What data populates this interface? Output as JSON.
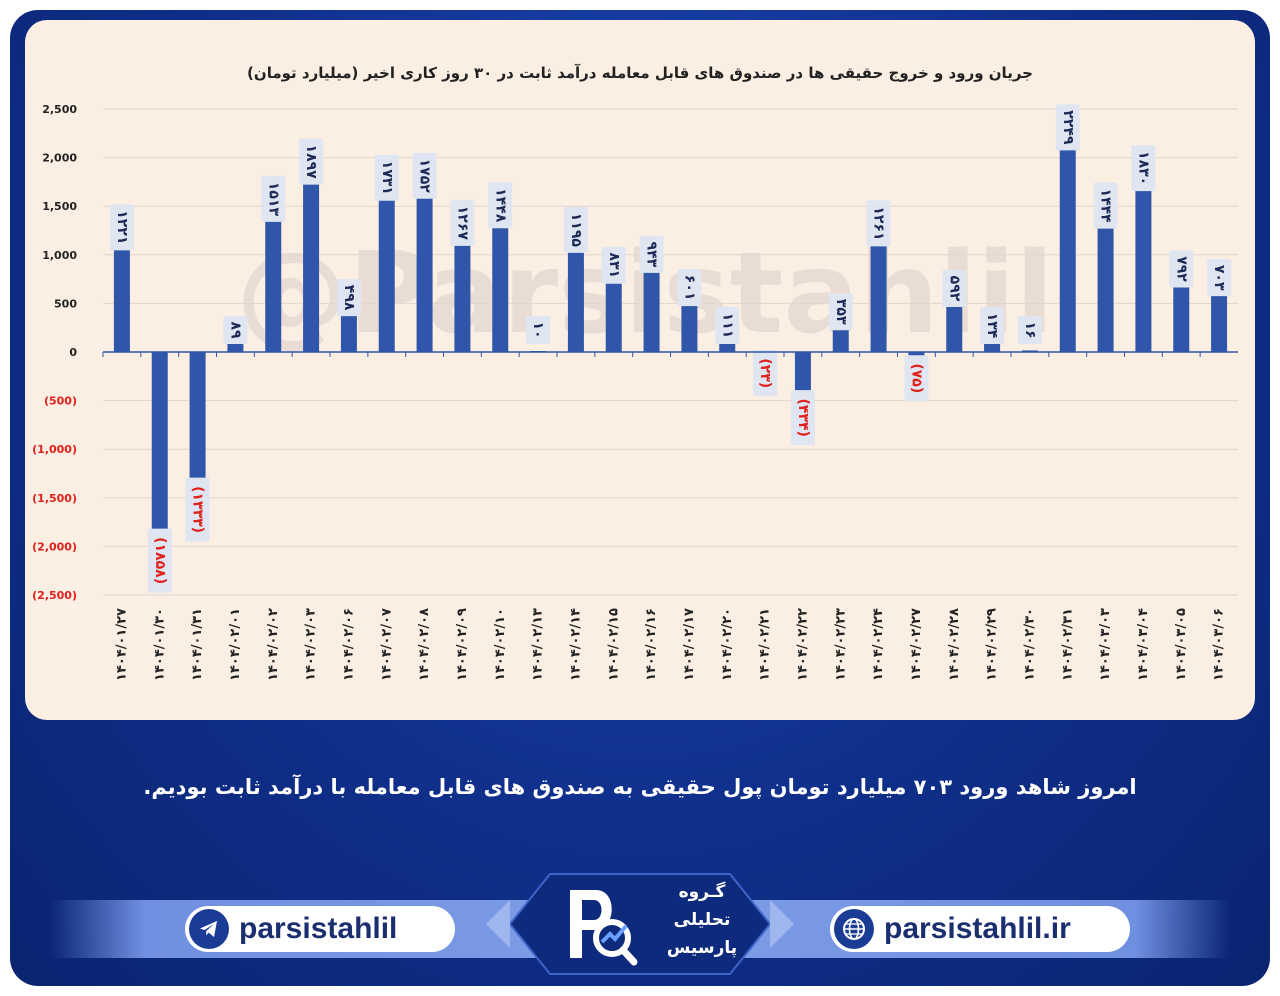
{
  "chart_data": {
    "type": "bar",
    "title": "جریان ورود و خروج حقیقی ها در صندوق های قابل معامله درآمد ثابت در ۳۰ روز کاری اخیر (میلیارد تومان)",
    "watermark": "@Parsistahlil",
    "ylim": [
      -2500,
      2500
    ],
    "yticks": [
      {
        "v": 2500,
        "label": "2,500"
      },
      {
        "v": 2000,
        "label": "2,000"
      },
      {
        "v": 1500,
        "label": "1,500"
      },
      {
        "v": 1000,
        "label": "1,000"
      },
      {
        "v": 500,
        "label": "500"
      },
      {
        "v": 0,
        "label": "0"
      },
      {
        "v": -500,
        "label": "(500)"
      },
      {
        "v": -1000,
        "label": "(1,000)"
      },
      {
        "v": -1500,
        "label": "(1,500)"
      },
      {
        "v": -2000,
        "label": "(2,000)"
      },
      {
        "v": -2500,
        "label": "(2,500)"
      }
    ],
    "grid": true,
    "colors": {
      "bar": "#2f56a8",
      "negative_label": "#e0201b",
      "label_box": "#dfe6f2",
      "tick_negative": "#e0201b"
    },
    "categories": [
      "۱۴۰۴/۰۱/۲۷",
      "۱۴۰۴/۰۱/۳۰",
      "۱۴۰۴/۰۱/۳۱",
      "۱۴۰۴/۰۲/۰۱",
      "۱۴۰۴/۰۲/۰۲",
      "۱۴۰۴/۰۲/۰۳",
      "۱۴۰۴/۰۲/۰۶",
      "۱۴۰۴/۰۲/۰۷",
      "۱۴۰۴/۰۲/۰۸",
      "۱۴۰۴/۰۲/۰۹",
      "۱۴۰۴/۰۲/۱۰",
      "۱۴۰۴/۰۲/۱۳",
      "۱۴۰۴/۰۲/۱۴",
      "۱۴۰۴/۰۲/۱۵",
      "۱۴۰۴/۰۲/۱۶",
      "۱۴۰۴/۰۲/۱۷",
      "۱۴۰۴/۰۲/۲۰",
      "۱۴۰۴/۰۲/۲۱",
      "۱۴۰۴/۰۲/۲۲",
      "۱۴۰۴/۰۲/۲۳",
      "۱۴۰۴/۰۲/۲۴",
      "۱۴۰۴/۰۲/۲۷",
      "۱۴۰۴/۰۲/۲۸",
      "۱۴۰۴/۰۲/۲۹",
      "۱۴۰۴/۰۲/۳۰",
      "۱۴۰۴/۰۲/۳۱",
      "۱۴۰۴/۰۳/۰۳",
      "۱۴۰۴/۰۳/۰۴",
      "۱۴۰۴/۰۳/۰۵",
      "۱۴۰۴/۰۳/۰۶"
    ],
    "values": [
      1221,
      -1858,
      -1333,
      89,
      1513,
      1897,
      498,
      1731,
      1752,
      1267,
      1448,
      10,
      1195,
      831,
      943,
      601,
      111,
      -23,
      -434,
      353,
      1261,
      -75,
      592,
      134,
      16,
      2249,
      1444,
      1830,
      792,
      703
    ],
    "data_labels": [
      "۱۲۲۱",
      "(۱۸۵۸)",
      "(۱۳۳۳)",
      "۸۹",
      "۱۵۱۳",
      "۱۸۹۷",
      "۴۹۸",
      "۱۷۳۱",
      "۱۷۵۲",
      "۱۲۶۷",
      "۱۴۴۸",
      "۱۰",
      "۱۱۹۵",
      "۸۳۱",
      "۹۴۳",
      "۶۰۱",
      "۱۱۱",
      "(۲۳)",
      "(۴۳۴)",
      "۳۵۳",
      "۱۲۶۱",
      "(۷۵)",
      "۵۹۲",
      "۱۳۴",
      "۱۶",
      "۲۲۴۹",
      "۱۴۴۴",
      "۱۸۳۰",
      "۷۹۲",
      "۷۰۳"
    ]
  },
  "caption": "امروز شاهد ورود ۷۰۳ میلیارد تومان پول حقیقی به صندوق های قابل معامله با درآمد ثابت بودیم.",
  "footer": {
    "telegram_handle": "parsistahlil",
    "website": "parsistahlil.ir",
    "logo_lines": [
      "گـروه",
      "تحلیلی",
      "پارسیس"
    ],
    "icons": [
      "telegram-icon",
      "globe-icon",
      "parsis-logo-icon"
    ],
    "colors": {
      "frame": "#0f2f8a",
      "band": "#7f9de6",
      "pill_text": "#1b2f70"
    }
  }
}
